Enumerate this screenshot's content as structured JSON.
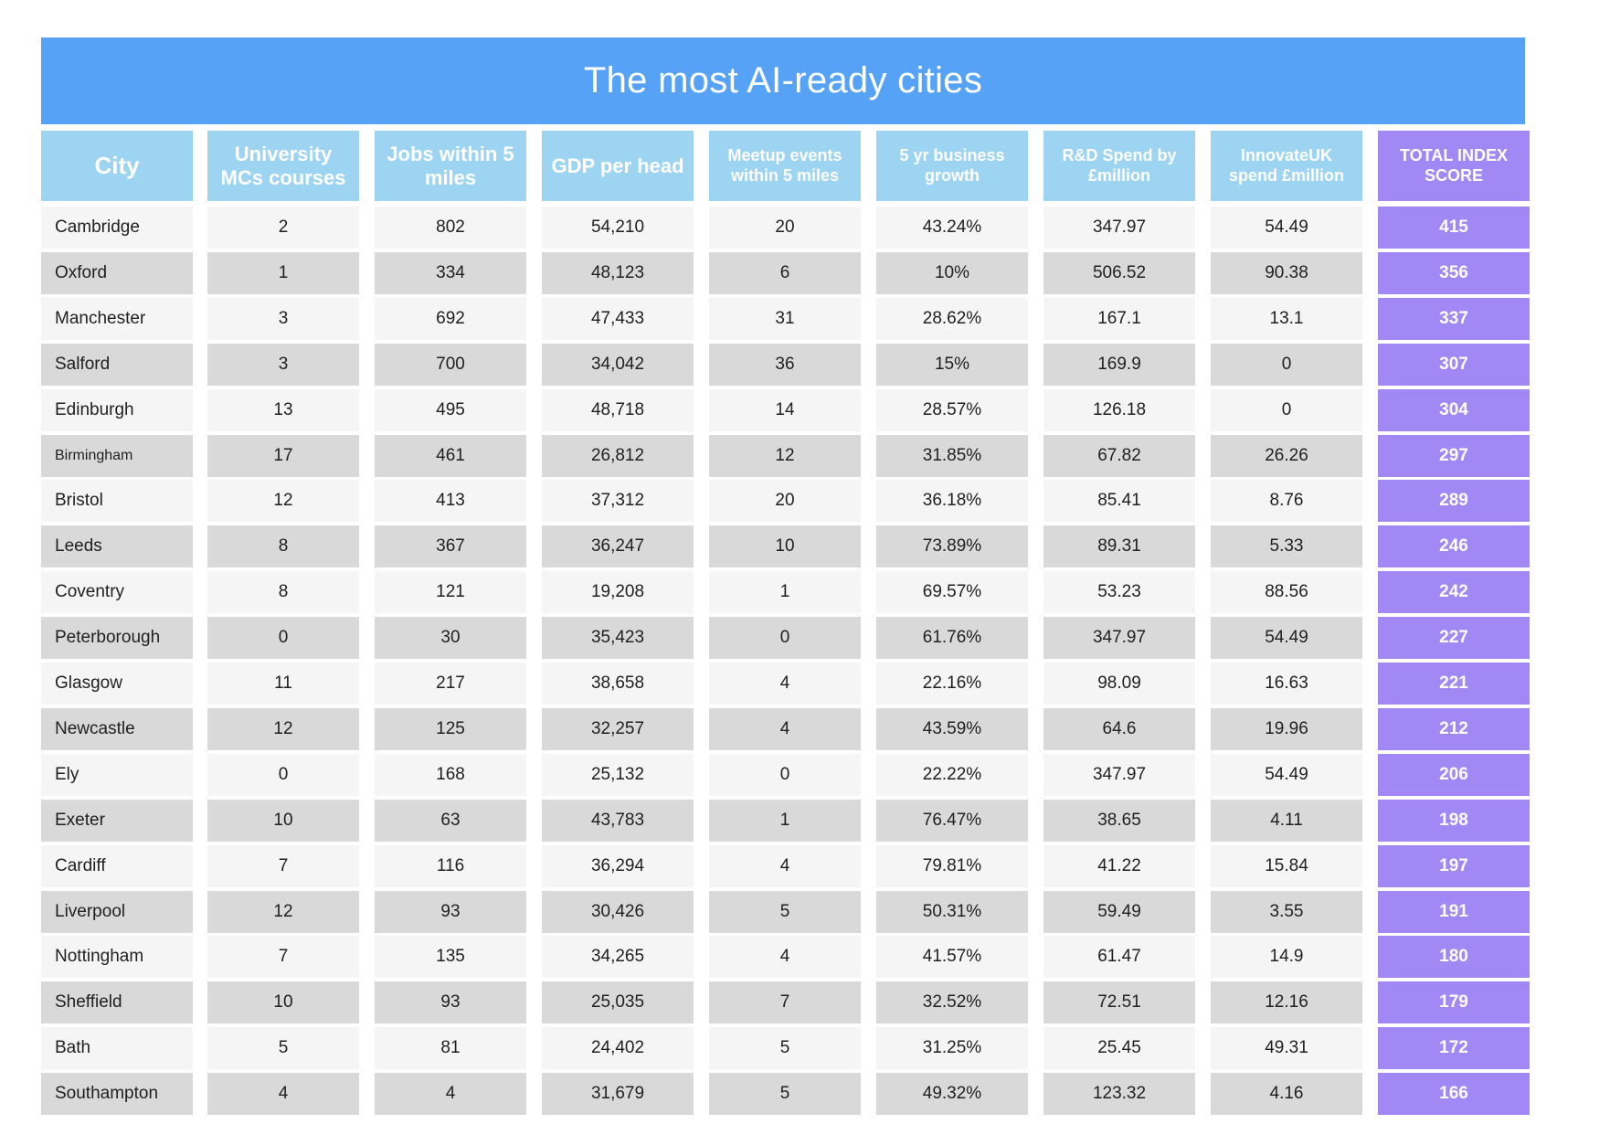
{
  "title": "The most AI-ready cities",
  "columns": [
    {
      "key": "city",
      "label": "City"
    },
    {
      "key": "uni",
      "label": "University MCs courses"
    },
    {
      "key": "jobs",
      "label": "Jobs within 5 miles"
    },
    {
      "key": "gdp",
      "label": "GDP per head"
    },
    {
      "key": "meetup",
      "label": "Meetup events within 5 miles"
    },
    {
      "key": "growth",
      "label": "5 yr business growth"
    },
    {
      "key": "rd",
      "label": "R&D Spend by £million"
    },
    {
      "key": "innovate",
      "label": "InnovateUK spend £million"
    },
    {
      "key": "total",
      "label": "TOTAL INDEX SCORE"
    }
  ],
  "colors": {
    "title_bar": "#55a2f7",
    "header": "#9dd4f1",
    "total": "#a288f4",
    "row_light": "#f5f5f5",
    "row_dark": "#d9d9d9"
  },
  "chart_data": {
    "type": "table",
    "title": "The most AI-ready cities",
    "rows": [
      [
        "Cambridge",
        "2",
        "802",
        "54,210",
        "20",
        "43.24%",
        "347.97",
        "54.49",
        "415"
      ],
      [
        "Oxford",
        "1",
        "334",
        "48,123",
        "6",
        "10%",
        "506.52",
        "90.38",
        "356"
      ],
      [
        "Manchester",
        "3",
        "692",
        "47,433",
        "31",
        "28.62%",
        "167.1",
        "13.1",
        "337"
      ],
      [
        "Salford",
        "3",
        "700",
        "34,042",
        "36",
        "15%",
        "169.9",
        "0",
        "307"
      ],
      [
        "Edinburgh",
        "13",
        "495",
        "48,718",
        "14",
        "28.57%",
        "126.18",
        "0",
        "304"
      ],
      [
        "Birmingham",
        "17",
        "461",
        "26,812",
        "12",
        "31.85%",
        "67.82",
        "26.26",
        "297"
      ],
      [
        "Bristol",
        "12",
        "413",
        "37,312",
        "20",
        "36.18%",
        "85.41",
        "8.76",
        "289"
      ],
      [
        "Leeds",
        "8",
        "367",
        "36,247",
        "10",
        "73.89%",
        "89.31",
        "5.33",
        "246"
      ],
      [
        "Coventry",
        "8",
        "121",
        "19,208",
        "1",
        "69.57%",
        "53.23",
        "88.56",
        "242"
      ],
      [
        "Peterborough",
        "0",
        "30",
        "35,423",
        "0",
        "61.76%",
        "347.97",
        "54.49",
        "227"
      ],
      [
        "Glasgow",
        "11",
        "217",
        "38,658",
        "4",
        "22.16%",
        "98.09",
        "16.63",
        "221"
      ],
      [
        "Newcastle",
        "12",
        "125",
        "32,257",
        "4",
        "43.59%",
        "64.6",
        "19.96",
        "212"
      ],
      [
        "Ely",
        "0",
        "168",
        "25,132",
        "0",
        "22.22%",
        "347.97",
        "54.49",
        "206"
      ],
      [
        "Exeter",
        "10",
        "63",
        "43,783",
        "1",
        "76.47%",
        "38.65",
        "4.11",
        "198"
      ],
      [
        "Cardiff",
        "7",
        "116",
        "36,294",
        "4",
        "79.81%",
        "41.22",
        "15.84",
        "197"
      ],
      [
        "Liverpool",
        "12",
        "93",
        "30,426",
        "5",
        "50.31%",
        "59.49",
        "3.55",
        "191"
      ],
      [
        "Nottingham",
        "7",
        "135",
        "34,265",
        "4",
        "41.57%",
        "61.47",
        "14.9",
        "180"
      ],
      [
        "Sheffield",
        "10",
        "93",
        "25,035",
        "7",
        "32.52%",
        "72.51",
        "12.16",
        "179"
      ],
      [
        "Bath",
        "5",
        "81",
        "24,402",
        "5",
        "31.25%",
        "25.45",
        "49.31",
        "172"
      ],
      [
        "Southampton",
        "4",
        "4",
        "31,679",
        "5",
        "49.32%",
        "123.32",
        "4.16",
        "166"
      ]
    ]
  }
}
